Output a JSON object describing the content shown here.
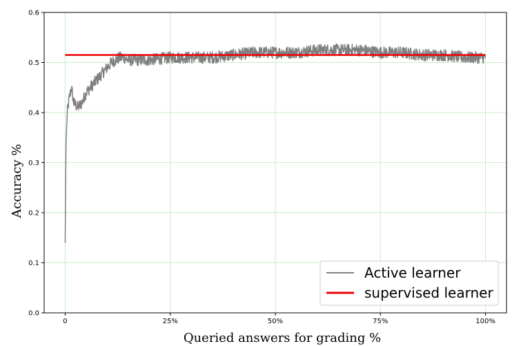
{
  "chart_data": {
    "type": "line",
    "title": "",
    "xlabel": "Queried answers for grading %",
    "ylabel": "Accuracy %",
    "x_ticks": [
      {
        "value": 0,
        "label": "0"
      },
      {
        "value": 25,
        "label": "25%"
      },
      {
        "value": 50,
        "label": "50%"
      },
      {
        "value": 75,
        "label": "75%"
      },
      {
        "value": 100,
        "label": "100%"
      }
    ],
    "y_ticks": [
      {
        "value": 0.0,
        "label": "0.0"
      },
      {
        "value": 0.1,
        "label": "0.1"
      },
      {
        "value": 0.2,
        "label": "0.2"
      },
      {
        "value": 0.3,
        "label": "0.3"
      },
      {
        "value": 0.4,
        "label": "0.4"
      },
      {
        "value": 0.5,
        "label": "0.5"
      },
      {
        "value": 0.6,
        "label": "0.6"
      }
    ],
    "xlim": [
      -5,
      105
    ],
    "ylim": [
      0,
      0.6
    ],
    "grid": true,
    "grid_color": "#c8eec8",
    "legend_position": "bottom-right",
    "series": [
      {
        "name": "Active learner",
        "color": "#808080",
        "x": [
          0,
          0.2,
          0.5,
          1,
          1.5,
          2,
          3,
          4,
          5,
          6,
          7,
          8,
          9,
          10,
          11,
          12,
          13,
          14,
          15,
          17,
          20,
          25,
          30,
          35,
          40,
          45,
          50,
          55,
          60,
          65,
          70,
          75,
          80,
          85,
          90,
          95,
          100
        ],
        "y": [
          0.14,
          0.34,
          0.4,
          0.43,
          0.45,
          0.42,
          0.41,
          0.42,
          0.44,
          0.45,
          0.46,
          0.47,
          0.48,
          0.49,
          0.5,
          0.505,
          0.51,
          0.51,
          0.505,
          0.505,
          0.505,
          0.51,
          0.51,
          0.51,
          0.515,
          0.52,
          0.52,
          0.52,
          0.525,
          0.525,
          0.525,
          0.52,
          0.52,
          0.515,
          0.515,
          0.51,
          0.51
        ],
        "noise": 0.012
      },
      {
        "name": "supervised learner",
        "color": "#ee0000",
        "x": [
          0,
          100
        ],
        "y": [
          0.515,
          0.515
        ]
      }
    ]
  }
}
